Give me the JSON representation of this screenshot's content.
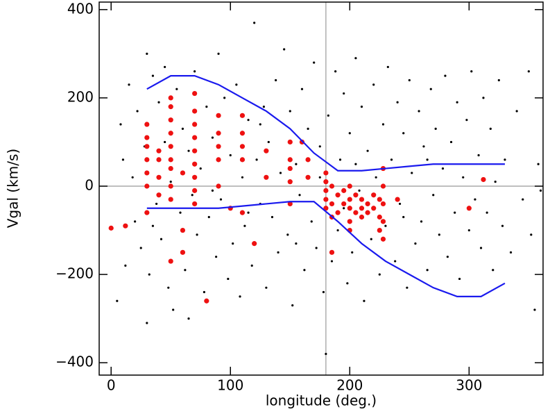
{
  "chart_data": {
    "type": "scatter",
    "xlabel": "longitude (deg.)",
    "ylabel": "Vgal (km/s)",
    "xlim": [
      -10,
      362
    ],
    "ylim": [
      -428,
      417
    ],
    "xticks": [
      0,
      100,
      200,
      300
    ],
    "yticks": [
      {
        "value": -400,
        "label": "−400"
      },
      {
        "value": -200,
        "label": "−200"
      },
      0,
      200,
      400
    ],
    "ref_lines_color": "#999999",
    "hlines": [
      0
    ],
    "vlines": [
      180
    ],
    "series": [
      {
        "color": "#000000",
        "size": 1.6,
        "x": [
          5,
          8,
          10,
          12,
          15,
          18,
          20,
          22,
          25,
          28,
          30,
          30,
          32,
          35,
          38,
          40,
          42,
          45,
          48,
          50,
          52,
          55,
          58,
          60,
          62,
          65,
          68,
          70,
          72,
          75,
          78,
          80,
          82,
          85,
          88,
          90,
          92,
          95,
          98,
          100,
          102,
          105,
          108,
          110,
          112,
          115,
          118,
          120,
          122,
          125,
          128,
          130,
          132,
          135,
          138,
          140,
          142,
          145,
          148,
          150,
          152,
          155,
          158,
          160,
          162,
          165,
          168,
          170,
          172,
          175,
          178,
          180,
          182,
          185,
          188,
          190,
          192,
          195,
          198,
          200,
          202,
          205,
          208,
          210,
          212,
          215,
          218,
          220,
          222,
          225,
          228,
          230,
          232,
          235,
          238,
          240,
          242,
          245,
          248,
          250,
          252,
          255,
          258,
          260,
          262,
          265,
          268,
          270,
          272,
          275,
          278,
          280,
          282,
          285,
          288,
          290,
          292,
          295,
          298,
          300,
          302,
          305,
          308,
          310,
          312,
          315,
          318,
          320,
          322,
          325,
          328,
          330,
          335,
          340,
          345,
          350,
          352,
          355,
          358,
          360,
          35,
          65,
          45,
          85,
          115,
          125,
          155,
          175,
          205,
          245,
          195,
          265
        ],
        "values": [
          -260,
          140,
          60,
          -180,
          230,
          20,
          -80,
          170,
          -140,
          90,
          -310,
          300,
          -200,
          250,
          -40,
          190,
          -120,
          270,
          -230,
          10,
          -280,
          220,
          -60,
          130,
          -190,
          80,
          -20,
          260,
          -110,
          40,
          -240,
          180,
          -70,
          110,
          -160,
          300,
          -30,
          200,
          -210,
          70,
          -130,
          230,
          -250,
          20,
          -90,
          150,
          -180,
          370,
          60,
          -40,
          180,
          -230,
          100,
          -70,
          240,
          -150,
          30,
          310,
          -110,
          170,
          -270,
          50,
          -20,
          220,
          -190,
          130,
          -80,
          280,
          -140,
          90,
          -240,
          -380,
          160,
          -170,
          260,
          -100,
          60,
          210,
          -220,
          120,
          -150,
          290,
          -10,
          180,
          -260,
          80,
          -120,
          230,
          20,
          -200,
          140,
          -90,
          270,
          60,
          -170,
          190,
          -40,
          120,
          -230,
          240,
          30,
          -130,
          170,
          -80,
          90,
          -190,
          220,
          -20,
          130,
          -110,
          40,
          250,
          -160,
          100,
          -60,
          190,
          -210,
          20,
          150,
          -100,
          260,
          -30,
          70,
          -140,
          200,
          -60,
          130,
          -190,
          10,
          240,
          -90,
          60,
          -150,
          170,
          -30,
          260,
          -110,
          -280,
          50,
          -10,
          -90,
          -300,
          100,
          -10,
          -60,
          140,
          -130,
          20,
          50,
          -70,
          -50,
          60
        ]
      },
      {
        "color": "#ee1111",
        "size": 3.6,
        "x": [
          30,
          30,
          30,
          30,
          30,
          30,
          30,
          40,
          40,
          40,
          40,
          50,
          50,
          50,
          50,
          50,
          50,
          50,
          50,
          50,
          50,
          60,
          60,
          60,
          70,
          70,
          70,
          70,
          70,
          70,
          70,
          70,
          70,
          80,
          90,
          90,
          90,
          90,
          90,
          100,
          110,
          110,
          110,
          110,
          110,
          120,
          130,
          130,
          150,
          150,
          150,
          150,
          150,
          160,
          165,
          165,
          180,
          180,
          180,
          180,
          180,
          185,
          185,
          185,
          185,
          190,
          190,
          195,
          195,
          200,
          200,
          200,
          200,
          200,
          205,
          205,
          210,
          210,
          210,
          215,
          215,
          220,
          220,
          225,
          225,
          225,
          228,
          228,
          228,
          228,
          228,
          240,
          300,
          312,
          0,
          12
        ],
        "values": [
          140,
          110,
          90,
          60,
          30,
          0,
          -60,
          80,
          60,
          20,
          -20,
          200,
          180,
          150,
          120,
          90,
          60,
          40,
          0,
          -30,
          -170,
          30,
          -100,
          -150,
          210,
          170,
          140,
          110,
          80,
          50,
          20,
          -10,
          -40,
          -260,
          160,
          120,
          90,
          60,
          0,
          -50,
          160,
          120,
          90,
          60,
          -60,
          -130,
          80,
          20,
          100,
          60,
          40,
          10,
          -40,
          100,
          60,
          20,
          30,
          10,
          -10,
          -30,
          -50,
          0,
          -40,
          -70,
          -150,
          -20,
          -60,
          -10,
          -40,
          0,
          -30,
          -50,
          -80,
          -100,
          -20,
          -60,
          -30,
          -50,
          -70,
          -40,
          -60,
          -20,
          -50,
          -30,
          -70,
          -100,
          40,
          0,
          -40,
          -80,
          -120,
          -30,
          -50,
          15,
          -95,
          -90
        ]
      }
    ],
    "lines": [
      {
        "color": "#1a1aee",
        "x": [
          30,
          50,
          70,
          90,
          110,
          130,
          150,
          170,
          190,
          210,
          230,
          250,
          270,
          290,
          310,
          330
        ],
        "values": [
          220,
          250,
          250,
          230,
          200,
          170,
          130,
          75,
          35,
          35,
          40,
          45,
          50,
          50,
          50,
          50
        ]
      },
      {
        "color": "#1a1aee",
        "x": [
          30,
          50,
          70,
          90,
          110,
          130,
          150,
          170,
          190,
          210,
          230,
          250,
          270,
          290,
          310,
          330
        ],
        "values": [
          -50,
          -50,
          -50,
          -50,
          -45,
          -40,
          -35,
          -35,
          -80,
          -130,
          -170,
          -200,
          -230,
          -250,
          -250,
          -220
        ]
      }
    ]
  }
}
